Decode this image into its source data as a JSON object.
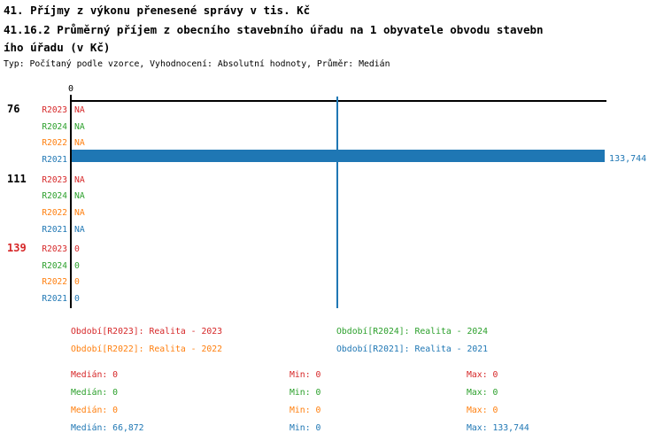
{
  "header": {
    "line1": "41. Příjmy z výkonu přenesené správy v tis. Kč",
    "line2": "41.16.2 Průměrný příjem z obecního stavebního úřadu na 1 obyvatele obvodu stavebn",
    "line3": "ího úřadu (v Kč)",
    "meta": "Typ: Počítaný podle vzorce, Vyhodnocení: Absolutní hodnoty, Průměr: Medián"
  },
  "colors": {
    "R2023": "#d62728",
    "R2024": "#2ca02c",
    "R2022": "#ff7f0e",
    "R2021": "#1f77b4",
    "axis": "#000000"
  },
  "chart_data": {
    "type": "bar",
    "orientation": "horizontal",
    "title": "41. Příjmy z výkonu přenesené správy v tis. Kč",
    "subtitle": "41.16.2 Průměrný příjem z obecního stavebního úřadu na 1 obyvatele obvodu stavebního úřadu (v Kč)",
    "note": "Typ: Počítaný podle vzorce, Vyhodnocení: Absolutní hodnoty, Průměr: Medián",
    "x_axis": {
      "tick_labels": [
        "0"
      ],
      "range": [
        0,
        134400
      ],
      "grid": false
    },
    "median_reference_line": 66872,
    "series_order": [
      "R2023",
      "R2024",
      "R2022",
      "R2021"
    ],
    "groups": [
      {
        "category": "76",
        "category_color": "#000000",
        "rows": [
          {
            "series": "R2023",
            "value": null,
            "display": "NA"
          },
          {
            "series": "R2024",
            "value": null,
            "display": "NA"
          },
          {
            "series": "R2022",
            "value": null,
            "display": "NA"
          },
          {
            "series": "R2021",
            "value": 133744,
            "display": "133,744"
          }
        ]
      },
      {
        "category": "111",
        "category_color": "#000000",
        "rows": [
          {
            "series": "R2023",
            "value": null,
            "display": "NA"
          },
          {
            "series": "R2024",
            "value": null,
            "display": "NA"
          },
          {
            "series": "R2022",
            "value": null,
            "display": "NA"
          },
          {
            "series": "R2021",
            "value": null,
            "display": "NA"
          }
        ]
      },
      {
        "category": "139",
        "category_color": "#d62728",
        "rows": [
          {
            "series": "R2023",
            "value": 0,
            "display": "0"
          },
          {
            "series": "R2024",
            "value": 0,
            "display": "0"
          },
          {
            "series": "R2022",
            "value": 0,
            "display": "0"
          },
          {
            "series": "R2021",
            "value": 0,
            "display": "0"
          }
        ]
      }
    ]
  },
  "legend": [
    {
      "series": "R2023",
      "label": "Období[R2023]: Realita - 2023"
    },
    {
      "series": "R2024",
      "label": "Období[R2024]: Realita - 2024"
    },
    {
      "series": "R2022",
      "label": "Období[R2022]: Realita - 2022"
    },
    {
      "series": "R2021",
      "label": "Období[R2021]: Realita - 2021"
    }
  ],
  "stats": {
    "median_label": "Medián",
    "min_label": "Min",
    "max_label": "Max",
    "rows": [
      {
        "series": "R2023",
        "median": "0",
        "min": "0",
        "max": "0"
      },
      {
        "series": "R2024",
        "median": "0",
        "min": "0",
        "max": "0"
      },
      {
        "series": "R2022",
        "median": "0",
        "min": "0",
        "max": "0"
      },
      {
        "series": "R2021",
        "median": "66,872",
        "min": "0",
        "max": "133,744"
      }
    ]
  }
}
